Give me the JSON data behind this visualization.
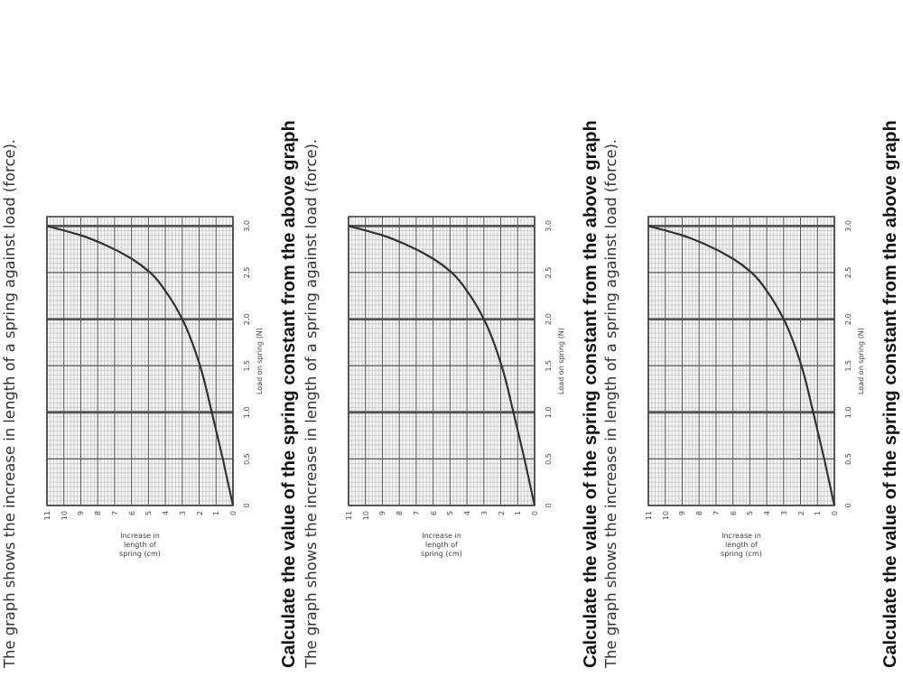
{
  "chart_data": [
    {
      "type": "line",
      "title": "The graph shows the increase in length of a spring against load (force).",
      "xlabel": "Increase in length of spring (cm)",
      "ylabel": "Load on spring (N)",
      "annotations": [
        "Calculate the value of the spring constant from the above graph"
      ],
      "x": [
        0,
        0.6,
        1.25,
        1.95,
        3.0,
        3.8,
        4.9,
        6.0,
        7.6,
        9.0,
        11
      ],
      "series": [
        {
          "color": "#333333",
          "values": [
            0,
            0.5,
            1.0,
            1.5,
            2.0,
            2.25,
            2.5,
            2.65,
            2.8,
            2.9,
            3.0
          ]
        }
      ],
      "xlim": [
        11,
        0
      ],
      "xticks": [
        11,
        10,
        9,
        8,
        7,
        6,
        5,
        4,
        3,
        2,
        1,
        0
      ],
      "ylim": [
        0,
        3.1
      ],
      "yticks": [
        0,
        0.5,
        {
          "value": 1,
          "label": "1.0"
        },
        1.5,
        {
          "value": 2,
          "label": "2.0"
        },
        2.5,
        {
          "value": 3,
          "label": "3.0"
        }
      ],
      "grid": true,
      "legend": false,
      "marker": "none",
      "line_style": "solid"
    },
    {
      "type": "line",
      "title": "The graph shows the increase in length of a spring against load (force).",
      "xlabel": "Increase in length of spring (cm)",
      "ylabel": "Load on spring (N)",
      "annotations": [
        "Calculate the value of the spring constant from the above graph"
      ],
      "x": [
        0,
        0.6,
        1.25,
        1.95,
        3.0,
        3.8,
        4.9,
        6.0,
        7.6,
        9.0,
        11
      ],
      "series": [
        {
          "color": "#333333",
          "values": [
            0,
            0.5,
            1.0,
            1.5,
            2.0,
            2.25,
            2.5,
            2.65,
            2.8,
            2.9,
            3.0
          ]
        }
      ],
      "xlim": [
        11,
        0
      ],
      "xticks": [
        11,
        10,
        9,
        8,
        7,
        6,
        5,
        4,
        3,
        2,
        1,
        0
      ],
      "ylim": [
        0,
        3.1
      ],
      "yticks": [
        0,
        0.5,
        {
          "value": 1,
          "label": "1.0"
        },
        1.5,
        {
          "value": 2,
          "label": "2.0"
        },
        2.5,
        {
          "value": 3,
          "label": "3.0"
        }
      ],
      "grid": true,
      "legend": false,
      "marker": "none",
      "line_style": "solid"
    },
    {
      "type": "line",
      "title": "The graph shows the increase in length of a spring against load (force).",
      "xlabel": "Increase in length of spring (cm)",
      "ylabel": "Load on spring (N)",
      "annotations": [
        "Calculate the value of the spring constant from the above graph"
      ],
      "x": [
        0,
        0.6,
        1.25,
        1.95,
        3.0,
        3.8,
        4.9,
        6.0,
        7.6,
        9.0,
        11
      ],
      "series": [
        {
          "color": "#333333",
          "values": [
            0,
            0.5,
            1.0,
            1.5,
            2.0,
            2.25,
            2.5,
            2.65,
            2.8,
            2.9,
            3.0
          ]
        }
      ],
      "xlim": [
        11,
        0
      ],
      "xticks": [
        11,
        10,
        9,
        8,
        7,
        6,
        5,
        4,
        3,
        2,
        1,
        0
      ],
      "ylim": [
        0,
        3.1
      ],
      "yticks": [
        0,
        0.5,
        {
          "value": 1,
          "label": "1.0"
        },
        1.5,
        {
          "value": 2,
          "label": "2.0"
        },
        2.5,
        {
          "value": 3,
          "label": "3.0"
        }
      ],
      "grid": true,
      "legend": false,
      "marker": "none",
      "line_style": "solid"
    }
  ]
}
